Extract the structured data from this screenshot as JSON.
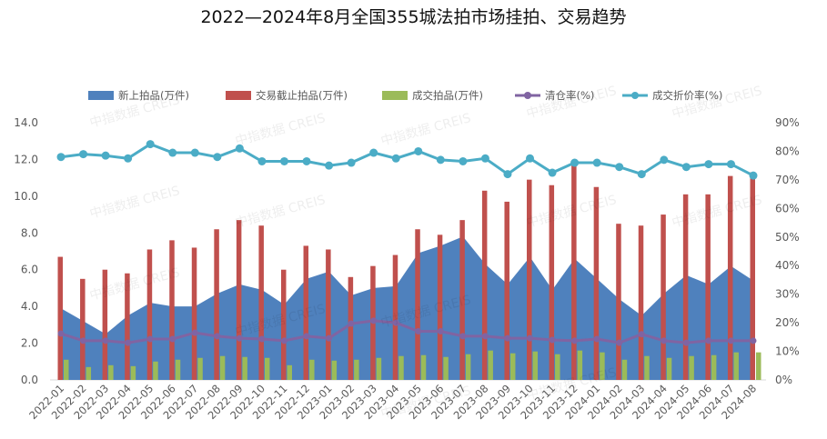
{
  "chart_data": {
    "type": "bar",
    "title": "2022—2024年8月全国355城法拍市场挂拍、交易趋势",
    "categories": [
      "2022-01",
      "2022-02",
      "2022-03",
      "2022-04",
      "2022-05",
      "2022-06",
      "2022-07",
      "2022-08",
      "2022-09",
      "2022-10",
      "2022-11",
      "2022-12",
      "2023-01",
      "2023-02",
      "2023-03",
      "2023-04",
      "2023-05",
      "2023-06",
      "2023-07",
      "2023-08",
      "2023-09",
      "2023-10",
      "2023-11",
      "2023-12",
      "2024-01",
      "2024-02",
      "2024-03",
      "2024-04",
      "2024-05",
      "2024-06",
      "2024-07",
      "2024-08"
    ],
    "y_left": {
      "min": 0,
      "max": 14,
      "ticks": [
        "0.0",
        "2.0",
        "4.0",
        "6.0",
        "8.0",
        "10.0",
        "12.0",
        "14.0"
      ]
    },
    "y_right": {
      "min": 0,
      "max": 90,
      "ticks": [
        "0%",
        "10%",
        "20%",
        "30%",
        "40%",
        "50%",
        "60%",
        "70%",
        "80%",
        "90%"
      ]
    },
    "grid": false,
    "legend": "top",
    "watermark": "中指数据 CREIS",
    "series": [
      {
        "name": "新上拍品(万件)",
        "type": "area",
        "axis": "left",
        "color": "#4f81bd",
        "values": [
          3.9,
          3.2,
          2.5,
          3.5,
          4.2,
          4.0,
          4.0,
          4.7,
          5.2,
          4.9,
          4.1,
          5.5,
          5.9,
          4.6,
          5.0,
          5.1,
          6.9,
          7.3,
          7.8,
          6.3,
          5.2,
          6.7,
          4.9,
          6.6,
          5.5,
          4.4,
          3.5,
          4.7,
          5.7,
          5.2,
          6.2,
          5.4
        ]
      },
      {
        "name": "交易截止拍品(万件)",
        "type": "bar",
        "axis": "left",
        "color": "#c0504d",
        "values": [
          6.7,
          5.5,
          6.0,
          5.8,
          7.1,
          7.6,
          7.2,
          8.2,
          8.7,
          8.4,
          6.0,
          7.3,
          7.1,
          5.6,
          6.2,
          6.8,
          8.2,
          7.9,
          8.7,
          10.3,
          9.7,
          10.9,
          10.6,
          11.9,
          10.5,
          8.5,
          8.4,
          9.0,
          10.1,
          10.1,
          11.1,
          11.3
        ]
      },
      {
        "name": "成交拍品(万件)",
        "type": "bar",
        "axis": "left",
        "color": "#9bbb59",
        "values": [
          1.1,
          0.7,
          0.8,
          0.75,
          1.0,
          1.1,
          1.2,
          1.3,
          1.25,
          1.2,
          0.8,
          1.1,
          1.05,
          1.1,
          1.2,
          1.3,
          1.35,
          1.25,
          1.4,
          1.6,
          1.45,
          1.55,
          1.4,
          1.6,
          1.5,
          1.1,
          1.3,
          1.2,
          1.3,
          1.35,
          1.5,
          1.5
        ]
      },
      {
        "name": "清仓率(%)",
        "type": "line",
        "axis": "right",
        "color": "#8064a2",
        "values": [
          16.2,
          13.7,
          13.7,
          13.0,
          14.3,
          14.3,
          16.5,
          15.3,
          14.6,
          14.3,
          13.7,
          15.3,
          14.6,
          19.7,
          20.7,
          20.0,
          17.0,
          17.0,
          15.3,
          15.3,
          14.6,
          14.6,
          14.0,
          13.7,
          14.3,
          13.0,
          16.0,
          13.7,
          13.0,
          13.7,
          13.7,
          13.7
        ]
      },
      {
        "name": "成交折价率(%)",
        "type": "line",
        "axis": "right",
        "color": "#4bacc6",
        "values": [
          78,
          79,
          78.5,
          77.5,
          82.5,
          79.5,
          79.5,
          78,
          81,
          76.5,
          76.5,
          76.5,
          75,
          76,
          79.5,
          77.5,
          80,
          77,
          76.5,
          77.5,
          72,
          77.5,
          72.5,
          76,
          76,
          74.5,
          72,
          77,
          74.5,
          75.5,
          75.5,
          71.5
        ]
      }
    ]
  }
}
